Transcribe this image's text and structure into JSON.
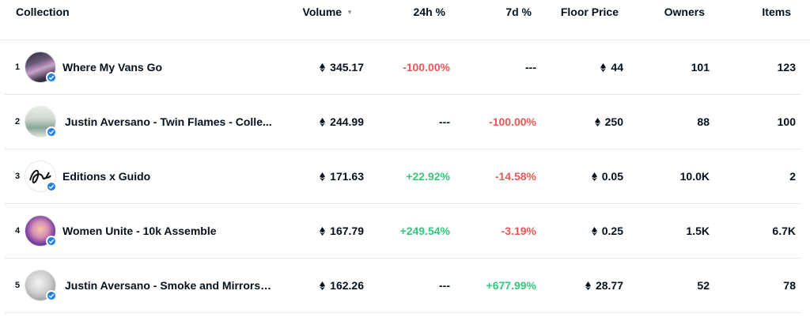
{
  "columns": {
    "collection": "Collection",
    "volume": "Volume",
    "change_24h": "24h %",
    "change_7d": "7d %",
    "floor_price": "Floor Price",
    "owners": "Owners",
    "items": "Items"
  },
  "rows": [
    {
      "rank": "1",
      "name": "Where My Vans Go",
      "volume": "345.17",
      "change_24h": "-100.00%",
      "change_7d": "---",
      "floor": "44",
      "owners": "101",
      "items": "123",
      "change_24h_color": "#eb5757",
      "change_7d_color": "#04111d"
    },
    {
      "rank": "2",
      "name": "Justin Aversano - Twin Flames - Colle...",
      "volume": "244.99",
      "change_24h": "---",
      "change_7d": "-100.00%",
      "floor": "250",
      "owners": "88",
      "items": "100",
      "change_24h_color": "#04111d",
      "change_7d_color": "#eb5757"
    },
    {
      "rank": "3",
      "name": "Editions x Guido",
      "volume": "171.63",
      "change_24h": "+22.92%",
      "change_7d": "-14.58%",
      "floor": "0.05",
      "owners": "10.0K",
      "items": "2",
      "change_24h_color": "#34c77b",
      "change_7d_color": "#eb5757"
    },
    {
      "rank": "4",
      "name": "Women Unite - 10k Assemble",
      "volume": "167.79",
      "change_24h": "+249.54%",
      "change_7d": "-3.19%",
      "floor": "0.25",
      "owners": "1.5K",
      "items": "6.7K",
      "change_24h_color": "#34c77b",
      "change_7d_color": "#eb5757"
    },
    {
      "rank": "5",
      "name": "Justin Aversano - Smoke and Mirrors ...",
      "volume": "162.26",
      "change_24h": "---",
      "change_7d": "+677.99%",
      "floor": "28.77",
      "owners": "52",
      "items": "78",
      "change_24h_color": "#04111d",
      "change_7d_color": "#34c77b"
    }
  ],
  "icons": {
    "currency": "eth-icon",
    "verified": "verified-badge-icon",
    "sort": "sort-down-icon"
  }
}
